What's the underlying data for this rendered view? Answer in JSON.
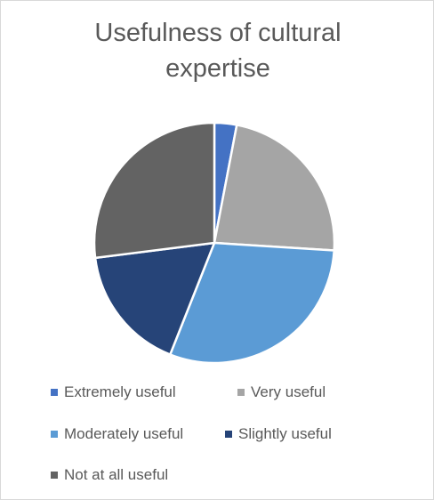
{
  "chart_data": {
    "type": "pie",
    "title": "Usefulness of cultural expertise",
    "categories": [
      "Extremely useful",
      "Very useful",
      "Moderately useful",
      "Slightly useful",
      "Not at all useful"
    ],
    "values": [
      3,
      23,
      30,
      17,
      27
    ],
    "colors": [
      "#4472c4",
      "#a5a5a5",
      "#5b9bd5",
      "#264478",
      "#636363"
    ],
    "legend": "bottom"
  }
}
